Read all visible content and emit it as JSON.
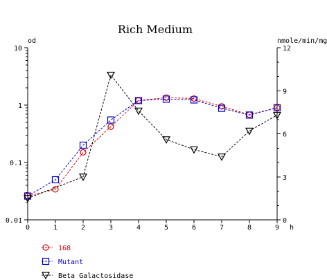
{
  "chart_data": {
    "type": "line",
    "title": "Rich Medium",
    "xlabel": "h",
    "ylabel_left": "od",
    "ylabel_right": "nmole/min/mg",
    "x_ticks": [
      "0",
      "1",
      "2",
      "3",
      "4",
      "5",
      "6",
      "7",
      "8",
      "9"
    ],
    "xlim": [
      0,
      9
    ],
    "y_left_scale": "log",
    "y_left_lim": [
      0.01,
      10
    ],
    "y_left_ticks": [
      "0.01",
      "0.1",
      "1",
      "10"
    ],
    "y_right_scale": "linear",
    "y_right_lim": [
      0,
      12
    ],
    "y_right_ticks": [
      "0",
      "3",
      "6",
      "9",
      "12"
    ],
    "grid": false,
    "legend_position": "bottom-left",
    "series": [
      {
        "name": "168",
        "axis": "left",
        "color": "#e00000",
        "marker": "circle",
        "x": [
          0,
          1,
          2,
          3,
          4,
          5,
          6,
          7,
          8,
          9
        ],
        "values": [
          0.026,
          0.034,
          0.15,
          0.42,
          1.2,
          1.35,
          1.3,
          0.95,
          0.68,
          0.9
        ]
      },
      {
        "name": "Mutant",
        "axis": "left",
        "color": "#0000cc",
        "marker": "square",
        "x": [
          0,
          1,
          2,
          3,
          4,
          5,
          6,
          7,
          8,
          9
        ],
        "values": [
          0.026,
          0.05,
          0.2,
          0.55,
          1.2,
          1.27,
          1.23,
          0.88,
          0.67,
          0.9
        ]
      },
      {
        "name": "Beta Galactosidase",
        "axis": "right",
        "color": "#000000",
        "marker": "triangle-down",
        "x": [
          0,
          1,
          2,
          3,
          4,
          5,
          6,
          7,
          8,
          9
        ],
        "values": [
          1.5,
          null,
          3.0,
          10.1,
          7.6,
          5.6,
          4.9,
          4.4,
          6.2,
          7.3
        ]
      }
    ]
  }
}
